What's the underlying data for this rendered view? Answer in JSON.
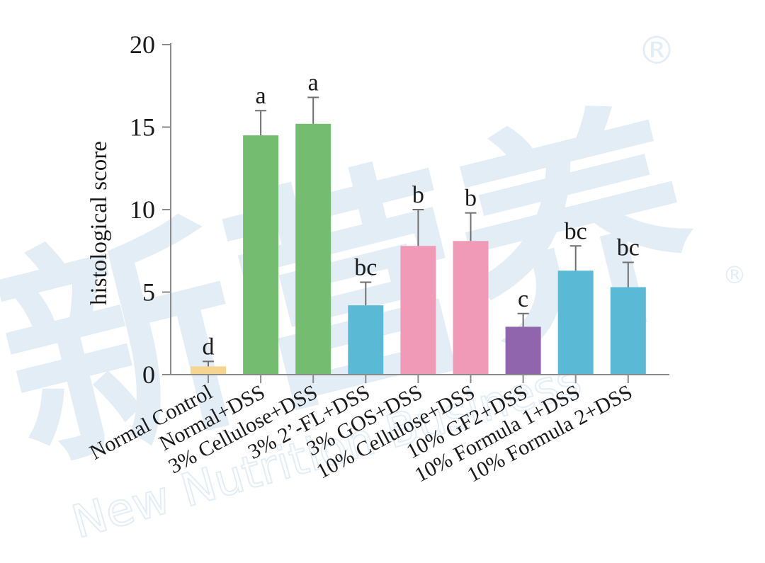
{
  "chart_data": {
    "type": "bar",
    "title": "",
    "xlabel": "",
    "ylabel": "histological score",
    "ylim": [
      0,
      20
    ],
    "yticks": [
      "0",
      "5",
      "10",
      "15",
      "20"
    ],
    "grid": false,
    "legend": "none",
    "categories": [
      "Normal Control",
      "Normal+DSS",
      "3% Cellulose+DSS",
      "3% 2’-FL+DSS",
      "3% GOS+DSS",
      "10% Cellulose+DSS",
      "10% GF2+DSS",
      "10% Formula 1+DSS",
      "10% Formula 2+DSS"
    ],
    "values": [
      0.5,
      14.5,
      15.2,
      4.2,
      7.8,
      8.1,
      2.9,
      6.3,
      5.3
    ],
    "errors": [
      0.3,
      1.5,
      1.6,
      1.4,
      2.2,
      1.7,
      0.8,
      1.5,
      1.5
    ],
    "significance_letters": [
      "d",
      "a",
      "a",
      "bc",
      "b",
      "b",
      "c",
      "bc",
      "bc"
    ],
    "colors": [
      "#f5d58f",
      "#74bd70",
      "#74bd70",
      "#5ab9d5",
      "#f09ab8",
      "#f09ab8",
      "#9164ae",
      "#5ab9d5",
      "#5ab9d5"
    ]
  },
  "watermark": {
    "chinese": "新营养",
    "latin": "New Nutrition Business",
    "mark": "®",
    "color": "#c2d8ea"
  }
}
